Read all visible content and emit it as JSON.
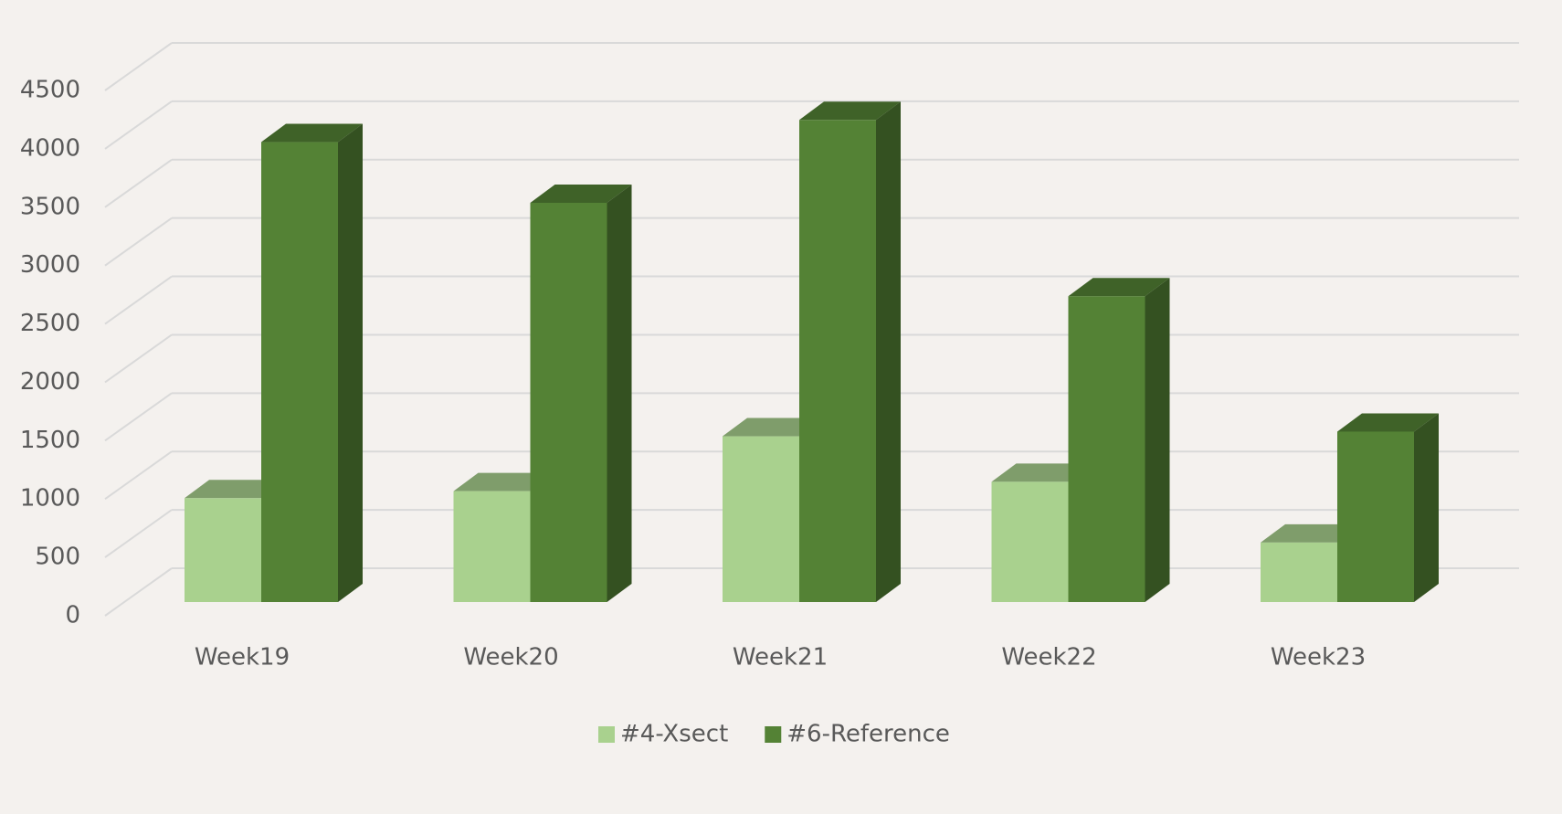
{
  "chart_data": {
    "type": "bar3d",
    "categories": [
      "Week19",
      "Week20",
      "Week21",
      "Week22",
      "Week23"
    ],
    "series": [
      {
        "name": "#4-Xsect",
        "color": "#a9d18e",
        "values": [
          890,
          950,
          1420,
          1030,
          510
        ]
      },
      {
        "name": "#6-Reference",
        "color": "#548235",
        "values": [
          3940,
          3420,
          4130,
          2620,
          1460
        ]
      }
    ],
    "ylim": [
      0,
      4500
    ],
    "yticks": [
      0,
      500,
      1000,
      1500,
      2000,
      2500,
      3000,
      3500,
      4000,
      4500
    ],
    "grid": true,
    "legend": "bottom"
  }
}
